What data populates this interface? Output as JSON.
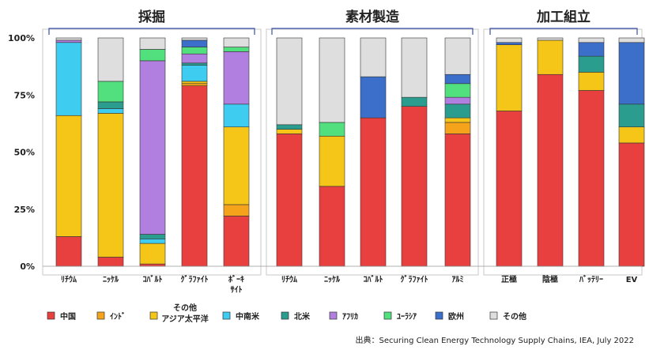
{
  "chart_data": {
    "type": "bar",
    "stacked": true,
    "ylim": [
      0,
      100
    ],
    "yticks": [
      "0%",
      "25%",
      "50%",
      "75%",
      "100%"
    ],
    "grid": false,
    "colors": {
      "中国": "#e8403f",
      "インド": "#f5a31b",
      "その他アジア太平洋": "#f5c518",
      "中南米": "#3ecdf0",
      "北米": "#2a9d8f",
      "アフリカ": "#b07fe0",
      "ユーラシア": "#52df7e",
      "欧州": "#3b6fc9",
      "その他": "#dedede"
    },
    "panels": [
      {
        "title": "採掘",
        "categories": [
          "ﾘﾁｳﾑ",
          "ﾆｯｹﾙ",
          "ｺﾊﾞﾙﾄ",
          "ｸﾞﾗﾌｧｲﾄ",
          "ﾎﾞｰｷ\nｻｲﾄ"
        ],
        "series": [
          {
            "name": "中国",
            "values": [
              13,
              4,
              1,
              79,
              22
            ]
          },
          {
            "name": "インド",
            "values": [
              0,
              0,
              0,
              1,
              5
            ]
          },
          {
            "name": "その他アジア太平洋",
            "values": [
              53,
              63,
              9,
              1,
              34
            ]
          },
          {
            "name": "中南米",
            "values": [
              32,
              2,
              2,
              7,
              10
            ]
          },
          {
            "name": "北米",
            "values": [
              0,
              3,
              2,
              1,
              0
            ]
          },
          {
            "name": "アフリカ",
            "values": [
              1,
              0,
              76,
              4,
              23
            ]
          },
          {
            "name": "ユーラシア",
            "values": [
              0,
              9,
              5,
              3,
              2
            ]
          },
          {
            "name": "欧州",
            "values": [
              0,
              0,
              0,
              3,
              0
            ]
          },
          {
            "name": "その他",
            "values": [
              1,
              19,
              5,
              1,
              4
            ]
          }
        ]
      },
      {
        "title": "素材製造",
        "categories": [
          "ﾘﾁｳﾑ",
          "ﾆｯｹﾙ",
          "ｺﾊﾞﾙﾄ",
          "ｸﾞﾗﾌｧｲﾄ",
          "ｱﾙﾐ"
        ],
        "series": [
          {
            "name": "中国",
            "values": [
              58,
              35,
              65,
              70,
              58
            ]
          },
          {
            "name": "インド",
            "values": [
              0,
              0,
              0,
              0,
              5
            ]
          },
          {
            "name": "その他アジア太平洋",
            "values": [
              2,
              22,
              0,
              0,
              2
            ]
          },
          {
            "name": "中南米",
            "values": [
              0,
              0,
              0,
              0,
              0
            ]
          },
          {
            "name": "北米",
            "values": [
              2,
              0,
              0,
              4,
              6
            ]
          },
          {
            "name": "アフリカ",
            "values": [
              0,
              0,
              0,
              0,
              3
            ]
          },
          {
            "name": "ユーラシア",
            "values": [
              0,
              6,
              0,
              0,
              6
            ]
          },
          {
            "name": "欧州",
            "values": [
              0,
              0,
              18,
              0,
              4
            ]
          },
          {
            "name": "その他",
            "values": [
              38,
              37,
              17,
              26,
              16
            ]
          }
        ]
      },
      {
        "title": "加工組立",
        "categories": [
          "正極",
          "陰極",
          "ﾊﾞｯﾃﾘｰ",
          "EV"
        ],
        "series": [
          {
            "name": "中国",
            "values": [
              68,
              84,
              77,
              54
            ]
          },
          {
            "name": "インド",
            "values": [
              0,
              0,
              0,
              0
            ]
          },
          {
            "name": "その他アジア太平洋",
            "values": [
              29,
              15,
              8,
              7
            ]
          },
          {
            "name": "中南米",
            "values": [
              0,
              0,
              0,
              0
            ]
          },
          {
            "name": "北米",
            "values": [
              0,
              0,
              7,
              10
            ]
          },
          {
            "name": "アフリカ",
            "values": [
              0,
              0,
              0,
              0
            ]
          },
          {
            "name": "ユーラシア",
            "values": [
              0,
              0,
              0,
              0
            ]
          },
          {
            "name": "欧州",
            "values": [
              1,
              0,
              6,
              27
            ]
          },
          {
            "name": "その他",
            "values": [
              2,
              1,
              2,
              2
            ]
          }
        ]
      }
    ],
    "legend": [
      {
        "name": "中国",
        "label": "中国"
      },
      {
        "name": "インド",
        "label": "ｲﾝﾄﾞ"
      },
      {
        "name": "その他アジア太平洋",
        "label": "その他\nアジア太平洋"
      },
      {
        "name": "中南米",
        "label": "中南米"
      },
      {
        "name": "北米",
        "label": "北米"
      },
      {
        "name": "アフリカ",
        "label": "ｱﾌﾘｶ"
      },
      {
        "name": "ユーラシア",
        "label": "ﾕｰﾗｼｱ"
      },
      {
        "name": "欧州",
        "label": "欧州"
      },
      {
        "name": "その他",
        "label": "その他"
      }
    ],
    "legend_position": "bottom",
    "source": "出典：Securing Clean Energy Technology Supply Chains, IEA, July 2022"
  }
}
